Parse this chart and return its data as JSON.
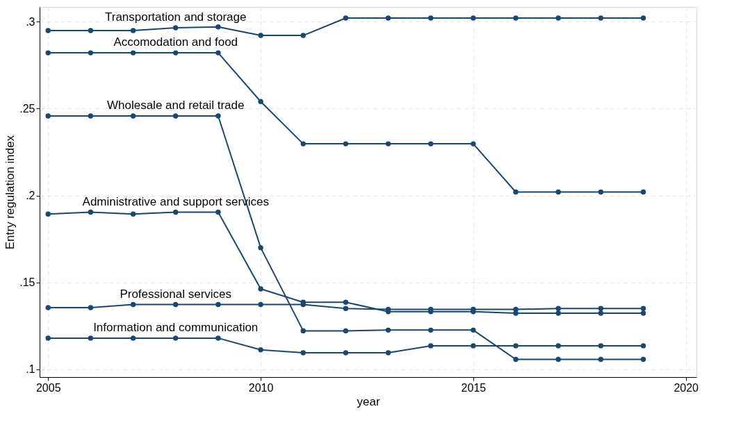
{
  "chart_data": {
    "type": "line",
    "xlabel": "year",
    "ylabel": "Entry regulation index",
    "x": [
      2005,
      2006,
      2007,
      2008,
      2009,
      2010,
      2011,
      2012,
      2013,
      2014,
      2015,
      2016,
      2017,
      2018,
      2019
    ],
    "series": [
      {
        "name": "Transportation and storage",
        "color": "#1a476f",
        "values": [
          0.2948,
          0.2948,
          0.2948,
          0.2964,
          0.2969,
          0.292,
          0.292,
          0.302,
          0.302,
          0.302,
          0.302,
          0.302,
          0.302,
          0.302,
          0.302
        ]
      },
      {
        "name": "Accomodation and food",
        "color": "#1a476f",
        "values": [
          0.282,
          0.282,
          0.282,
          0.282,
          0.282,
          0.254,
          0.2297,
          0.2297,
          0.2297,
          0.2297,
          0.2297,
          0.202,
          0.202,
          0.202,
          0.202
        ]
      },
      {
        "name": "Wholesale and retail trade",
        "color": "#1a476f",
        "values": [
          0.2457,
          0.2457,
          0.2457,
          0.2457,
          0.2457,
          0.17,
          0.1222,
          0.1222,
          0.1226,
          0.1226,
          0.1226,
          0.1058,
          0.1058,
          0.1058,
          0.1058
        ]
      },
      {
        "name": "Administrative and support services",
        "color": "#1a476f",
        "values": [
          0.1893,
          0.1904,
          0.1893,
          0.1904,
          0.1904,
          0.1463,
          0.1386,
          0.1386,
          0.1332,
          0.1332,
          0.1332,
          0.1323,
          0.1323,
          0.1323,
          0.1323
        ]
      },
      {
        "name": "Professional services",
        "color": "#1a476f",
        "values": [
          0.1355,
          0.1355,
          0.1373,
          0.1373,
          0.1373,
          0.1373,
          0.1373,
          0.135,
          0.1345,
          0.1345,
          0.1345,
          0.1345,
          0.135,
          0.135,
          0.135
        ]
      },
      {
        "name": "Information and communication",
        "color": "#1a476f",
        "values": [
          0.118,
          0.118,
          0.118,
          0.118,
          0.118,
          0.1113,
          0.1096,
          0.1096,
          0.1096,
          0.1136,
          0.1136,
          0.1136,
          0.1136,
          0.1136,
          0.1136
        ]
      }
    ],
    "xlim": [
      2004.8,
      2020.25
    ],
    "xticks": [
      2005,
      2010,
      2015,
      2020
    ],
    "ylim": [
      0.0956,
      0.3084
    ],
    "yticks": [
      {
        "value": 0.1,
        "label": ".1"
      },
      {
        "value": 0.15,
        "label": ".15"
      },
      {
        "value": 0.2,
        "label": ".2"
      },
      {
        "value": 0.25,
        "label": ".25"
      },
      {
        "value": 0.3,
        "label": ".3"
      }
    ],
    "grid": true,
    "legend": false,
    "marker": "circle",
    "line_style": "solid"
  }
}
